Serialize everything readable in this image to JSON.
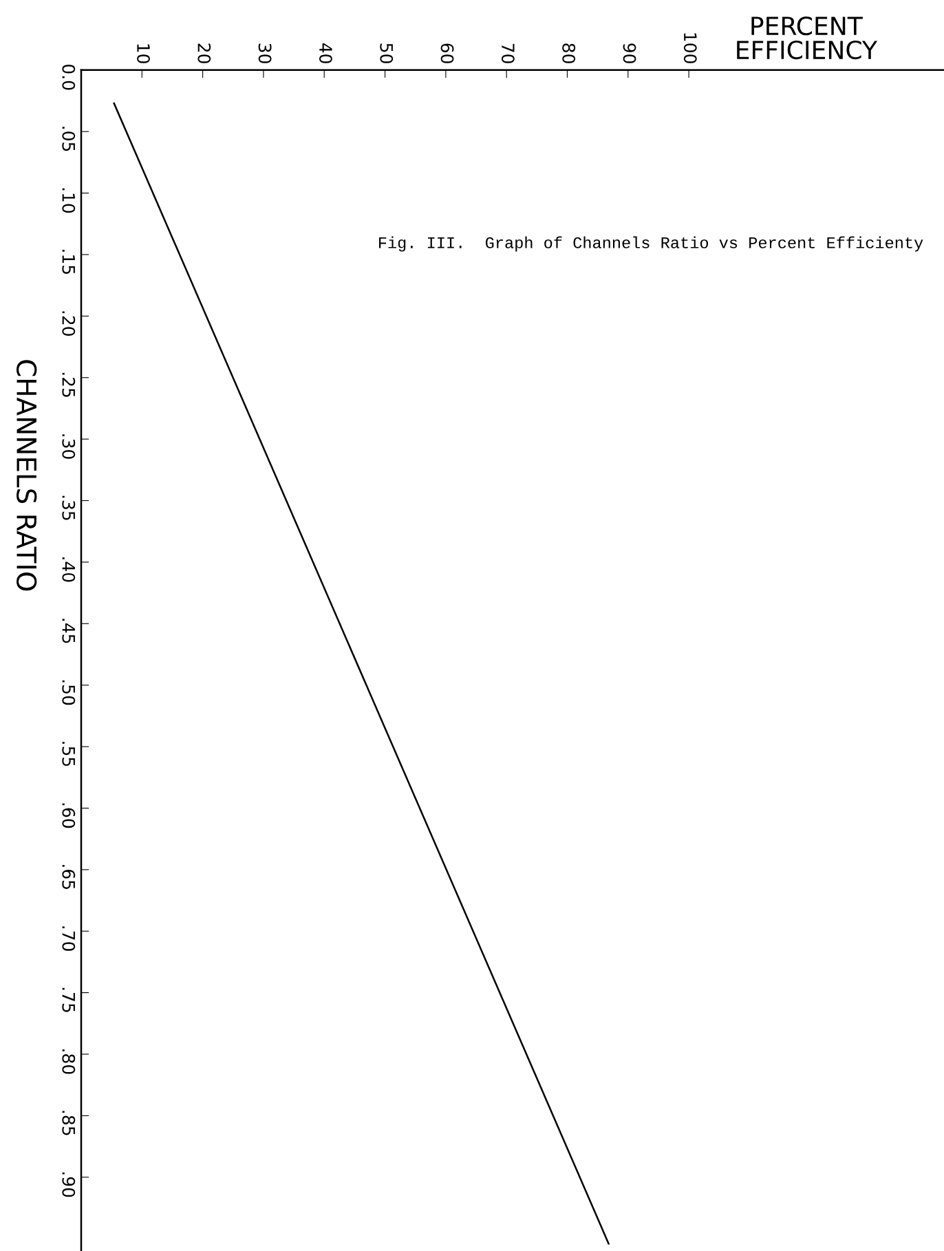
{
  "chart_data": {
    "type": "line",
    "xlabel": "PERCENT\nEFFICIENCY",
    "ylabel": "CHANNELS RATIO",
    "annotations": [
      "Fig. III.  Graph of Channels Ratio vs Percent Efficienty"
    ],
    "series": [
      {
        "color": "#000000",
        "x": [
          5.4,
          86.8
        ],
        "values": [
          0.027,
          0.954
        ]
      }
    ],
    "xlim": [
      0,
      142
    ],
    "xticks": [
      10,
      20,
      30,
      40,
      50,
      60,
      70,
      80,
      90,
      100
    ],
    "ylim": [
      0.96,
      0
    ],
    "yticks": [
      {
        "value": 0,
        "label": "0.0"
      },
      {
        "value": 0.05,
        "label": ".05"
      },
      {
        "value": 0.1,
        "label": ".10"
      },
      {
        "value": 0.15,
        "label": ".15"
      },
      {
        "value": 0.2,
        "label": ".20"
      },
      {
        "value": 0.25,
        "label": ".25"
      },
      {
        "value": 0.3,
        "label": ".30"
      },
      {
        "value": 0.35,
        "label": ".35"
      },
      {
        "value": 0.4,
        "label": ".40"
      },
      {
        "value": 0.45,
        "label": ".45"
      },
      {
        "value": 0.5,
        "label": ".50"
      },
      {
        "value": 0.55,
        "label": ".55"
      },
      {
        "value": 0.6,
        "label": ".60"
      },
      {
        "value": 0.65,
        "label": ".65"
      },
      {
        "value": 0.7,
        "label": ".70"
      },
      {
        "value": 0.75,
        "label": ".75"
      },
      {
        "value": 0.8,
        "label": ".80"
      },
      {
        "value": 0.85,
        "label": ".85"
      },
      {
        "value": 0.9,
        "label": ".90"
      }
    ],
    "grid": false,
    "legend": false,
    "marker": "none",
    "line_style": "solid"
  }
}
